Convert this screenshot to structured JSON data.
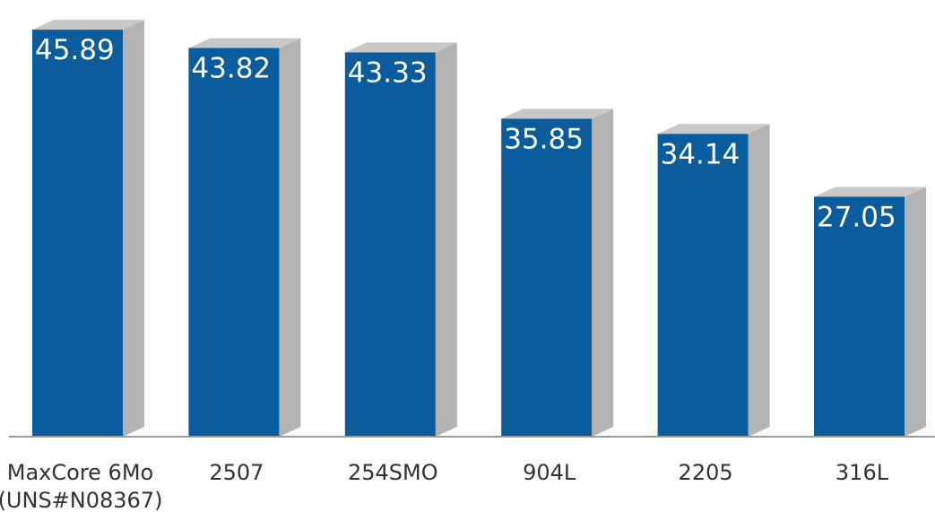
{
  "chart_data": {
    "type": "bar",
    "categories": [
      [
        "MaxCore 6Mo",
        "(UNS#N08367)"
      ],
      [
        "2507"
      ],
      [
        "254SMO"
      ],
      [
        "904L"
      ],
      [
        "2205"
      ],
      [
        "316L"
      ]
    ],
    "values": [
      45.89,
      43.82,
      43.33,
      35.85,
      34.14,
      27.05
    ],
    "value_labels": [
      "45.89",
      "43.82",
      "43.33",
      "35.85",
      "34.14",
      "27.05"
    ],
    "title": "",
    "xlabel": "",
    "ylabel": "",
    "ylim": [
      0,
      46
    ],
    "grid": false,
    "legend": "none",
    "colors": {
      "bar_front": "#0b5c9c",
      "bar_side": "#b3b3b3",
      "bar_top": "#c8c8c8",
      "axis": "#9a9a9a",
      "value_text": "#ffffff",
      "category_text": "#333333"
    }
  }
}
